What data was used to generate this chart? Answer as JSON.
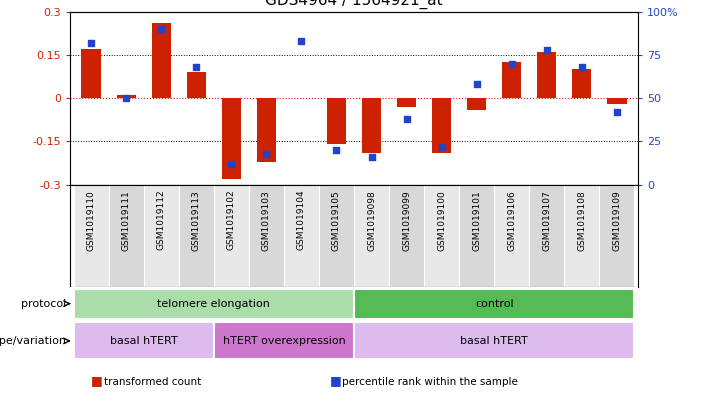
{
  "title": "GDS4964 / 1564921_at",
  "samples": [
    "GSM1019110",
    "GSM1019111",
    "GSM1019112",
    "GSM1019113",
    "GSM1019102",
    "GSM1019103",
    "GSM1019104",
    "GSM1019105",
    "GSM1019098",
    "GSM1019099",
    "GSM1019100",
    "GSM1019101",
    "GSM1019106",
    "GSM1019107",
    "GSM1019108",
    "GSM1019109"
  ],
  "bar_values": [
    0.17,
    0.01,
    0.26,
    0.09,
    -0.28,
    -0.22,
    0.0,
    -0.16,
    -0.19,
    -0.03,
    -0.19,
    -0.04,
    0.125,
    0.16,
    0.1,
    -0.02
  ],
  "percentile_values": [
    82,
    50,
    90,
    68,
    12,
    18,
    83,
    20,
    16,
    38,
    22,
    58,
    70,
    78,
    68,
    42
  ],
  "bar_color": "#cc2200",
  "dot_color": "#2244cc",
  "ylim_left": [
    -0.3,
    0.3
  ],
  "ylim_right": [
    0,
    100
  ],
  "yticks_left": [
    -0.3,
    -0.15,
    0.0,
    0.15,
    0.3
  ],
  "yticks_right": [
    0,
    25,
    50,
    75,
    100
  ],
  "ytick_labels_left": [
    "-0.3",
    "-0.15",
    "0",
    "0.15",
    "0.3"
  ],
  "ytick_labels_right": [
    "0",
    "25",
    "50",
    "75",
    "100%"
  ],
  "dotted_lines_black": [
    -0.15,
    0.15
  ],
  "protocol_groups": [
    {
      "label": "telomere elongation",
      "start": 0,
      "end": 7,
      "color": "#aaddaa"
    },
    {
      "label": "control",
      "start": 8,
      "end": 15,
      "color": "#55bb55"
    }
  ],
  "genotype_groups": [
    {
      "label": "basal hTERT",
      "start": 0,
      "end": 3,
      "color": "#ddbbee"
    },
    {
      "label": "hTERT overexpression",
      "start": 4,
      "end": 7,
      "color": "#cc77cc"
    },
    {
      "label": "basal hTERT",
      "start": 8,
      "end": 15,
      "color": "#ddbbee"
    }
  ],
  "protocol_label": "protocol",
  "genotype_label": "genotype/variation",
  "legend_red_label": "transformed count",
  "legend_blue_label": "percentile rank within the sample",
  "left_axis_color": "#cc2200",
  "right_axis_color": "#2244cc",
  "col_colors": [
    "#e8e8e8",
    "#d8d8d8"
  ]
}
